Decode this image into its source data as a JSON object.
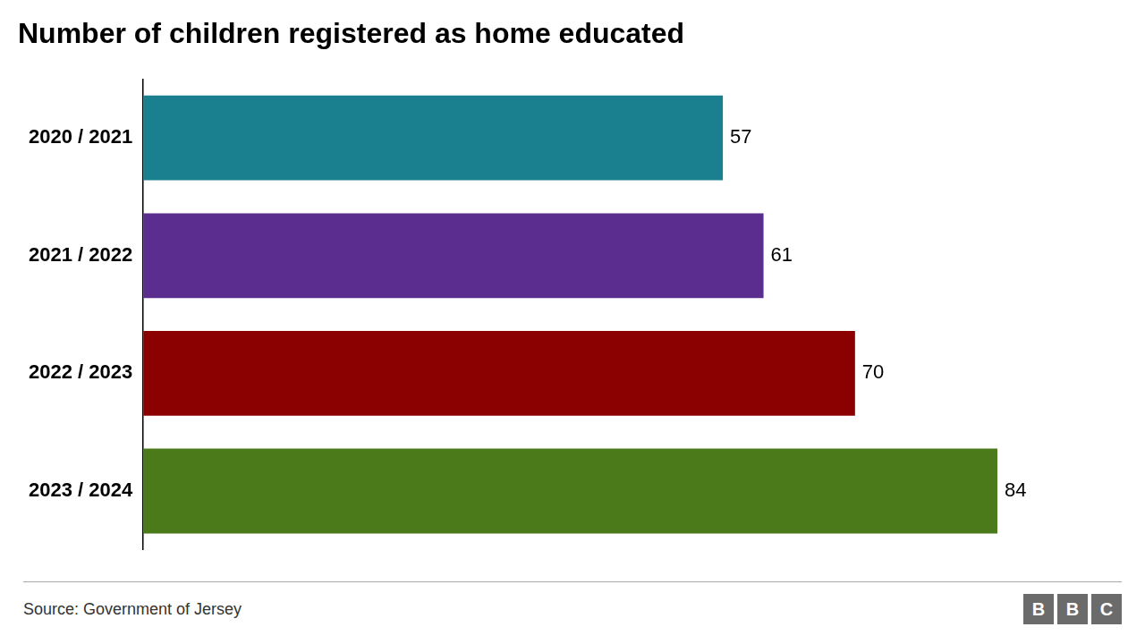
{
  "chart_data": {
    "type": "bar",
    "orientation": "horizontal",
    "title": "Number of children registered as home educated",
    "categories": [
      "2020 / 2021",
      "2021 / 2022",
      "2022 / 2023",
      "2023 / 2024"
    ],
    "values": [
      57,
      61,
      70,
      84
    ],
    "colors": [
      "#1a7f8e",
      "#5b2d8e",
      "#8b0000",
      "#4a7a19"
    ],
    "xlim": [
      0,
      95
    ],
    "grid": false,
    "data_labels": true,
    "tick_labels": "y",
    "annotations": [
      "Source: Government of Jersey",
      "BBC"
    ]
  }
}
